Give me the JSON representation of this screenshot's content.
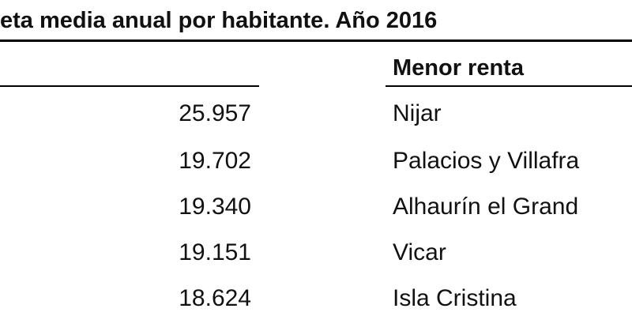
{
  "table": {
    "title": "eta media anual por habitante. Año 2016",
    "header": "Menor renta",
    "rows": [
      [
        "25.957",
        "Nijar"
      ],
      [
        "19.702",
        "Palacios y Villafra"
      ],
      [
        "19.340",
        "Alhaurín el Grand"
      ],
      [
        "19.151",
        "Vicar"
      ],
      [
        "18.624",
        "Isla Cristina"
      ]
    ]
  }
}
